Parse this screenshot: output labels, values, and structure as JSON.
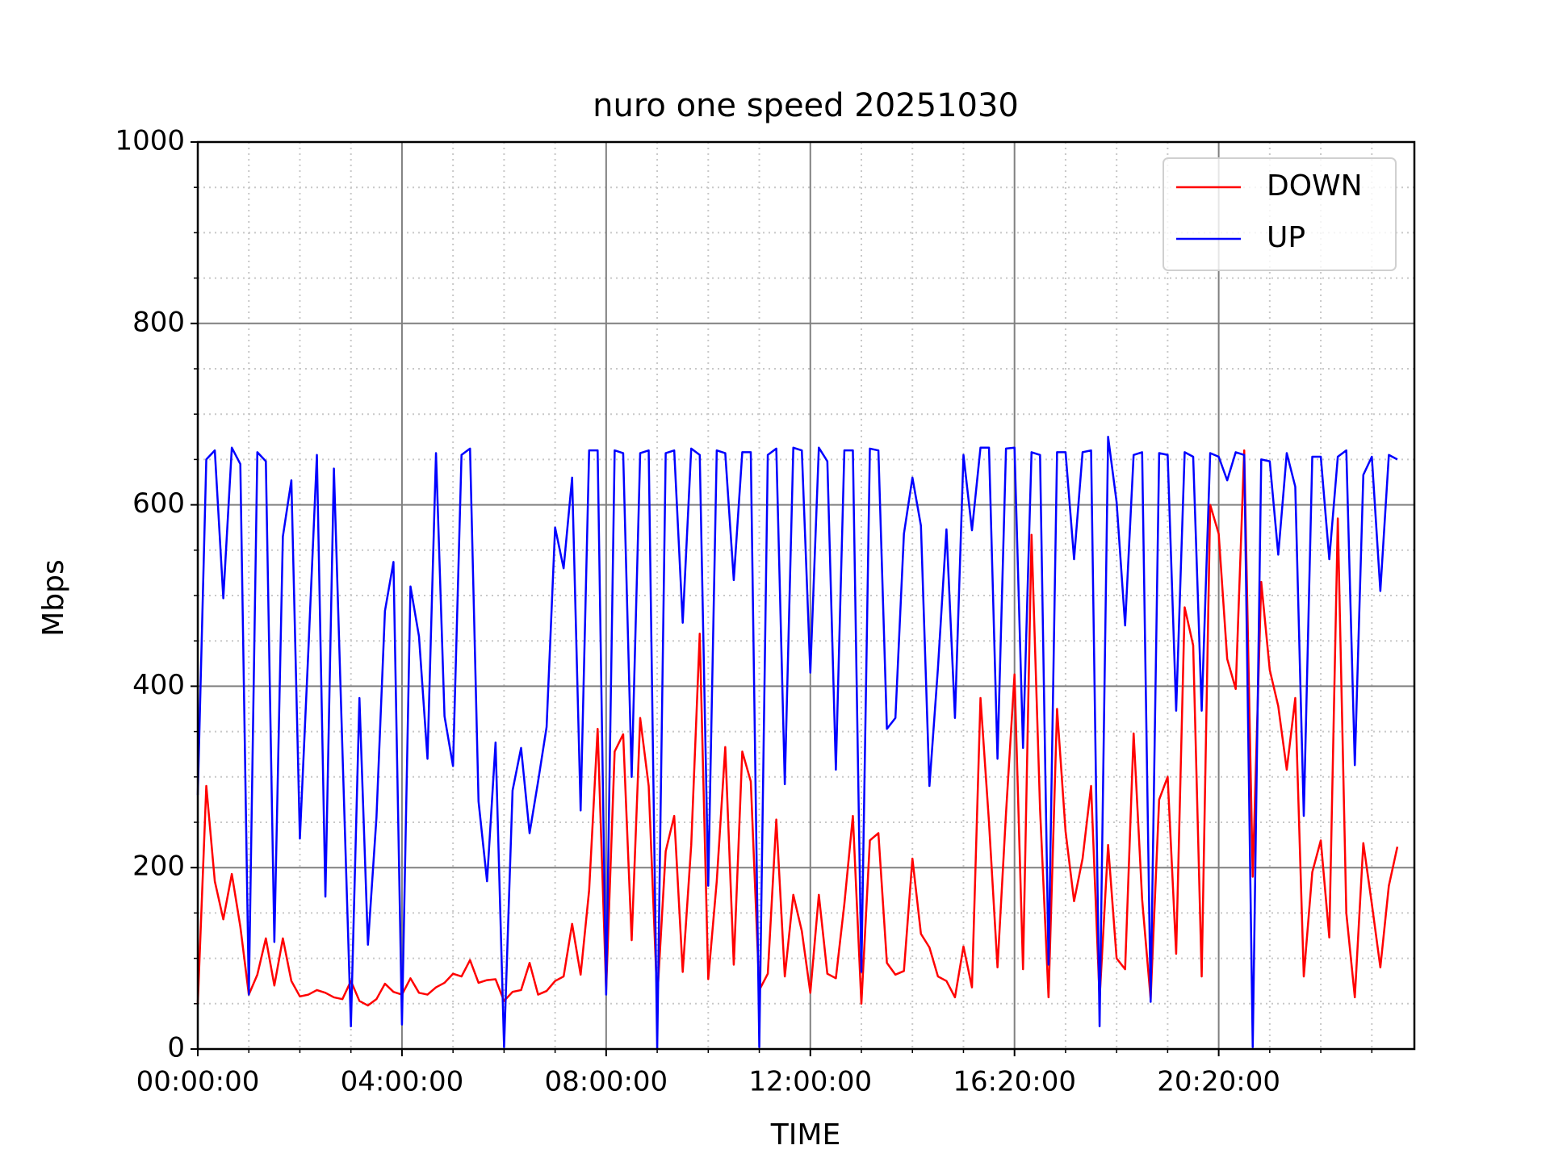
{
  "chart_data": {
    "type": "line",
    "title": "nuro one speed 20251030",
    "x_label": "TIME",
    "y_label": "Mbps",
    "x": [
      0,
      1,
      2,
      3,
      4,
      5,
      6,
      7,
      8,
      9,
      10,
      11,
      12,
      13,
      14,
      15,
      16,
      17,
      18,
      19,
      20,
      21,
      22,
      23,
      24,
      25,
      26,
      27,
      28,
      29,
      30,
      31,
      32,
      33,
      34,
      35,
      36,
      37,
      38,
      39,
      40,
      41,
      42,
      43,
      44,
      45,
      46,
      47,
      48,
      49,
      50,
      51,
      52,
      53,
      54,
      55,
      56,
      57,
      58,
      59,
      60,
      61,
      62,
      63,
      64,
      65,
      66,
      67,
      68,
      69,
      70,
      71,
      72,
      73,
      74,
      75,
      76,
      77,
      78,
      79,
      80,
      81,
      82,
      83,
      84,
      85,
      86,
      87,
      88,
      89,
      90,
      91,
      92,
      93,
      94,
      95,
      96,
      97,
      98,
      99,
      100,
      101,
      102,
      103,
      104,
      105,
      106,
      107,
      108,
      109,
      110,
      111,
      112,
      113,
      114,
      115,
      116,
      117,
      118,
      119,
      120,
      121,
      122,
      123,
      124,
      125,
      126,
      127,
      128,
      129,
      130,
      131,
      132,
      133,
      134,
      135,
      136,
      137,
      138,
      139,
      140,
      141
    ],
    "series": [
      {
        "name": "DOWN",
        "color": "#ff0000",
        "values": [
          50,
          290,
          185,
          143,
          193,
          135,
          60,
          82,
          122,
          70,
          122,
          75,
          58,
          60,
          65,
          62,
          57,
          55,
          75,
          53,
          48,
          55,
          72,
          63,
          60,
          78,
          62,
          60,
          68,
          73,
          83,
          80,
          98,
          73,
          76,
          77,
          53,
          63,
          65,
          95,
          60,
          64,
          75,
          80,
          138,
          82,
          175,
          353,
          65,
          328,
          347,
          120,
          365,
          290,
          55,
          218,
          257,
          85,
          225,
          458,
          77,
          185,
          333,
          93,
          328,
          295,
          65,
          83,
          253,
          80,
          170,
          130,
          62,
          170,
          83,
          78,
          160,
          257,
          50,
          230,
          238,
          95,
          82,
          86,
          210,
          127,
          112,
          80,
          75,
          57,
          113,
          68,
          387,
          250,
          90,
          260,
          413,
          88,
          567,
          265,
          57,
          375,
          240,
          163,
          210,
          290,
          55,
          225,
          100,
          88,
          348,
          165,
          55,
          275,
          300,
          105,
          487,
          445,
          80,
          600,
          568,
          430,
          397,
          660,
          190,
          515,
          418,
          378,
          308,
          387,
          80,
          195,
          230,
          123,
          585,
          150,
          57,
          227,
          160,
          90,
          180,
          223
        ]
      },
      {
        "name": "UP",
        "color": "#0000ff",
        "values": [
          280,
          650,
          660,
          497,
          663,
          645,
          60,
          658,
          648,
          118,
          565,
          627,
          232,
          440,
          655,
          168,
          640,
          330,
          25,
          387,
          115,
          255,
          483,
          537,
          27,
          510,
          455,
          320,
          657,
          367,
          312,
          655,
          662,
          273,
          185,
          338,
          2,
          285,
          332,
          238,
          295,
          355,
          575,
          530,
          630,
          263,
          660,
          660,
          60,
          660,
          657,
          300,
          657,
          660,
          0,
          657,
          660,
          470,
          662,
          655,
          180,
          660,
          657,
          517,
          658,
          658,
          2,
          655,
          662,
          292,
          663,
          660,
          415,
          663,
          648,
          308,
          660,
          660,
          85,
          662,
          660,
          353,
          365,
          568,
          630,
          577,
          290,
          420,
          573,
          365,
          655,
          572,
          663,
          663,
          320,
          662,
          663,
          332,
          658,
          655,
          93,
          658,
          658,
          540,
          658,
          660,
          25,
          675,
          603,
          467,
          655,
          658,
          52,
          657,
          655,
          373,
          658,
          653,
          373,
          657,
          653,
          627,
          658,
          655,
          2,
          650,
          648,
          545,
          657,
          620,
          257,
          653,
          653,
          540,
          653,
          660,
          313,
          633,
          653,
          505,
          655,
          650
        ]
      }
    ],
    "xlim": [
      0,
      143
    ],
    "xticks": [
      {
        "value": 0,
        "label": "00:00:00"
      },
      {
        "value": 24,
        "label": "04:00:00"
      },
      {
        "value": 48,
        "label": "08:00:00"
      },
      {
        "value": 72,
        "label": "12:00:00"
      },
      {
        "value": 96,
        "label": "16:20:00"
      },
      {
        "value": 120,
        "label": "20:20:00"
      }
    ],
    "x_minor_ticks": [
      6,
      12,
      18,
      30,
      36,
      42,
      54,
      60,
      66,
      78,
      84,
      90,
      102,
      108,
      114,
      126,
      132,
      138
    ],
    "ylim": [
      0,
      1000
    ],
    "yticks": [
      0,
      200,
      400,
      600,
      800,
      1000
    ],
    "y_minor_ticks": [
      50,
      100,
      150,
      250,
      300,
      350,
      450,
      500,
      550,
      650,
      700,
      750,
      850,
      900,
      950
    ],
    "grid": true,
    "minor_grid": true,
    "legend": "upper right"
  }
}
